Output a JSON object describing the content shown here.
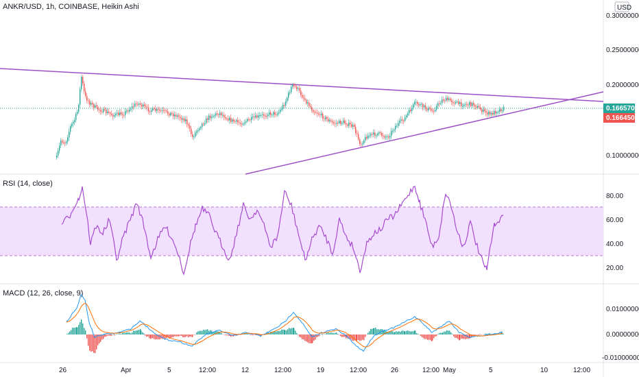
{
  "main_title": "ANKR/USD, 1h, COINBASE, Heikin Ashi",
  "currency_button": "USD",
  "price_axis": [
    "0.30000000",
    "0.25000000",
    "0.20000000",
    "0.10000000"
  ],
  "price_badges": {
    "current": "0.16657000",
    "previous": "0.16645000"
  },
  "rsi": {
    "title": "RSI (14, close)",
    "axis": [
      "80.00",
      "60.00",
      "40.00",
      "20.00"
    ]
  },
  "macd": {
    "title": "MACD (12, 26, close, 9)",
    "axis": [
      "0.01000000",
      "0.00000000",
      "-0.01000000"
    ]
  },
  "time_axis": [
    "26",
    "Apr",
    "5",
    "12:00",
    "12",
    "12:00",
    "19",
    "12:00",
    "26",
    "12:00",
    "May",
    "5",
    "10",
    "12:00"
  ],
  "colors": {
    "up": "#26a69a",
    "down": "#ef5350",
    "trendline": "#9c4fc4",
    "rsi_line": "#a64bd0",
    "rsi_band": "#f2e0ff",
    "macd_line": "#2196f3",
    "signal_line": "#ff6d00",
    "badge_green": "#26a69a",
    "badge_red": "#ef5350"
  }
}
